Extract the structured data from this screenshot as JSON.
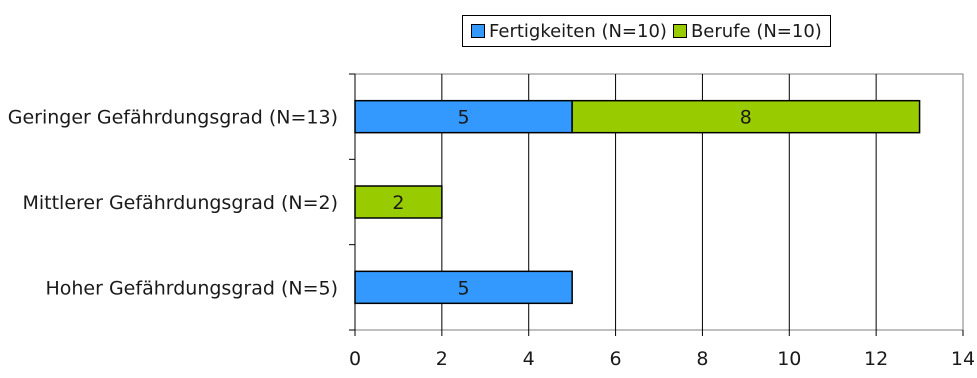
{
  "chart_data": {
    "type": "bar",
    "orientation": "horizontal",
    "stacked": true,
    "categories": [
      "Geringer Gefährdungsgrad (N=13)",
      "Mittlerer Gefährdungsgrad (N=2)",
      "Hoher Gefährdungsgrad (N=5)"
    ],
    "series": [
      {
        "name": "Fertigkeiten (N=10)",
        "values": [
          5,
          0,
          5
        ],
        "color": "#3399ff"
      },
      {
        "name": "Berufe (N=10)",
        "values": [
          8,
          2,
          0
        ],
        "color": "#99cc00"
      }
    ],
    "xlim": [
      0,
      14
    ],
    "xticks": [
      0,
      2,
      4,
      6,
      8,
      10,
      12,
      14
    ],
    "grid": "vertical",
    "legend_position": "top",
    "data_labels": true,
    "title": "",
    "xlabel": "",
    "ylabel": ""
  }
}
